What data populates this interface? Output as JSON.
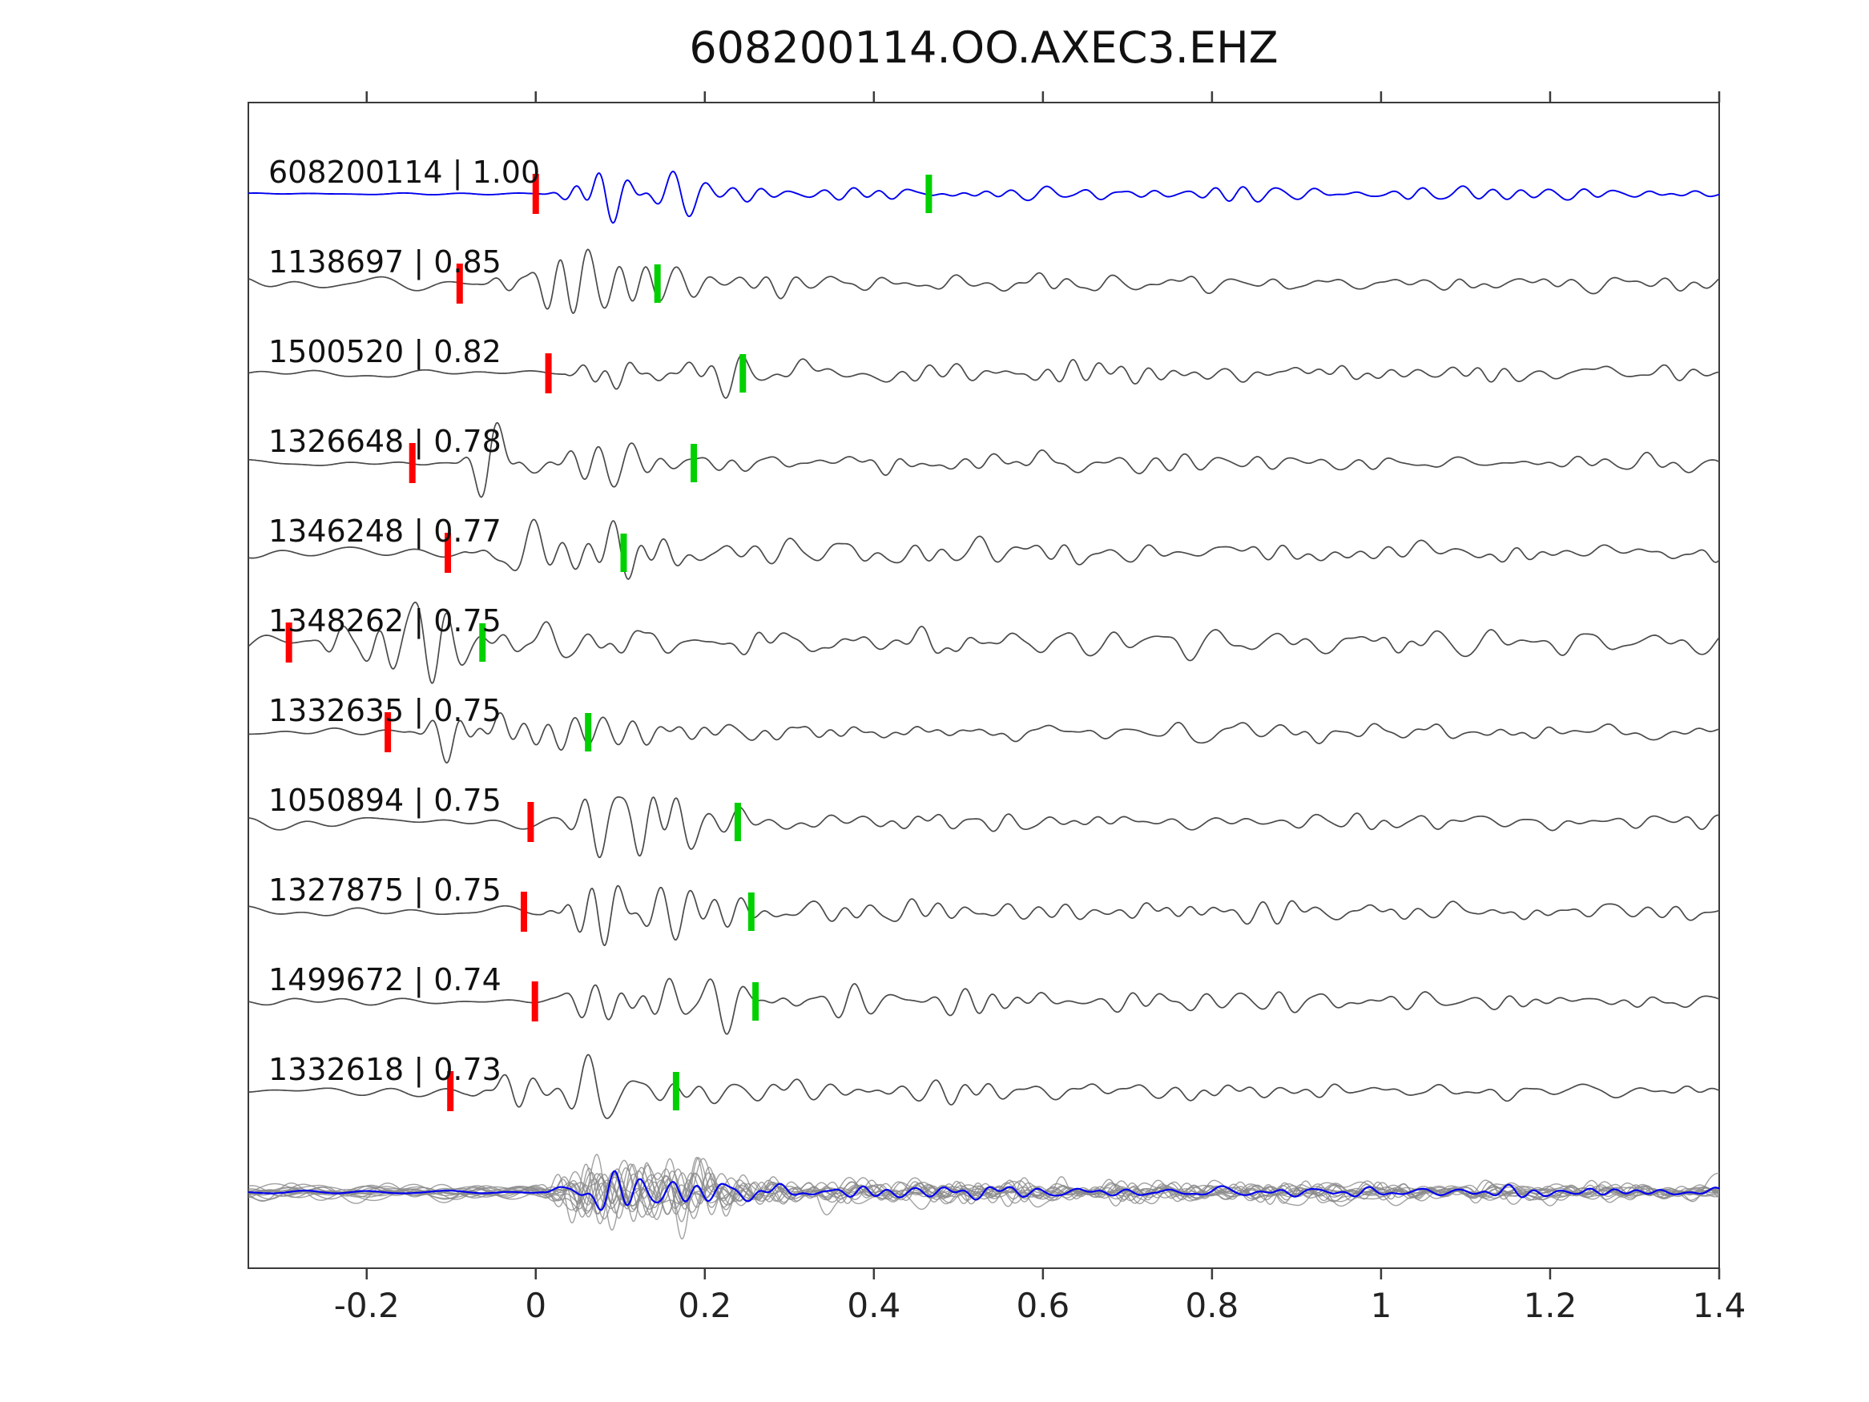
{
  "chart_data": {
    "type": "line",
    "title": "608200114.OO.AXEC3.EHZ",
    "xlim": [
      -0.34,
      1.4
    ],
    "x_ticks": [
      -0.2,
      0,
      0.2,
      0.4,
      0.6,
      0.8,
      1,
      1.2,
      1.4
    ],
    "x_tick_labels": [
      "-0.2",
      "0",
      "0.2",
      "0.4",
      "0.6",
      "0.8",
      "1",
      "1.2",
      "1.4"
    ],
    "grid": false,
    "legend": "none",
    "colors": {
      "master": "#0000ee",
      "trace": "#4a4a4a",
      "stack_gray": "#8a8a8a",
      "p_pick": "#ff0000",
      "s_pick": "#00d000",
      "axis": "#3a3a3a",
      "label_text": "#111111"
    },
    "traces": [
      {
        "id": "608200114",
        "correlation": 1.0,
        "label": "608200114 | 1.00",
        "is_master": true,
        "p_pick": 0.0,
        "s_pick": 0.465
      },
      {
        "id": "1138697",
        "correlation": 0.85,
        "label": "1138697 | 0.85",
        "is_master": false,
        "p_pick": -0.09,
        "s_pick": 0.144
      },
      {
        "id": "1500520",
        "correlation": 0.82,
        "label": "1500520 | 0.82",
        "is_master": false,
        "p_pick": 0.015,
        "s_pick": 0.245
      },
      {
        "id": "1326648",
        "correlation": 0.78,
        "label": "1326648 | 0.78",
        "is_master": false,
        "p_pick": -0.146,
        "s_pick": 0.187
      },
      {
        "id": "1346248",
        "correlation": 0.77,
        "label": "1346248 | 0.77",
        "is_master": false,
        "p_pick": -0.104,
        "s_pick": 0.104
      },
      {
        "id": "1348262",
        "correlation": 0.75,
        "label": "1348262 | 0.75",
        "is_master": false,
        "p_pick": -0.292,
        "s_pick": -0.063
      },
      {
        "id": "1332635",
        "correlation": 0.75,
        "label": "1332635 | 0.75",
        "is_master": false,
        "p_pick": -0.175,
        "s_pick": 0.062
      },
      {
        "id": "1050894",
        "correlation": 0.75,
        "label": "1050894 | 0.75",
        "is_master": false,
        "p_pick": -0.006,
        "s_pick": 0.239
      },
      {
        "id": "1327875",
        "correlation": 0.75,
        "label": "1327875 | 0.75",
        "is_master": false,
        "p_pick": -0.014,
        "s_pick": 0.255
      },
      {
        "id": "1499672",
        "correlation": 0.74,
        "label": "1499672 | 0.74",
        "is_master": false,
        "p_pick": -0.001,
        "s_pick": 0.26
      },
      {
        "id": "1332618",
        "correlation": 0.73,
        "label": "1332618 | 0.73",
        "is_master": false,
        "p_pick": -0.101,
        "s_pick": 0.166
      }
    ],
    "stack": {
      "n_overlaid": 14,
      "has_master_overlay": true
    }
  }
}
